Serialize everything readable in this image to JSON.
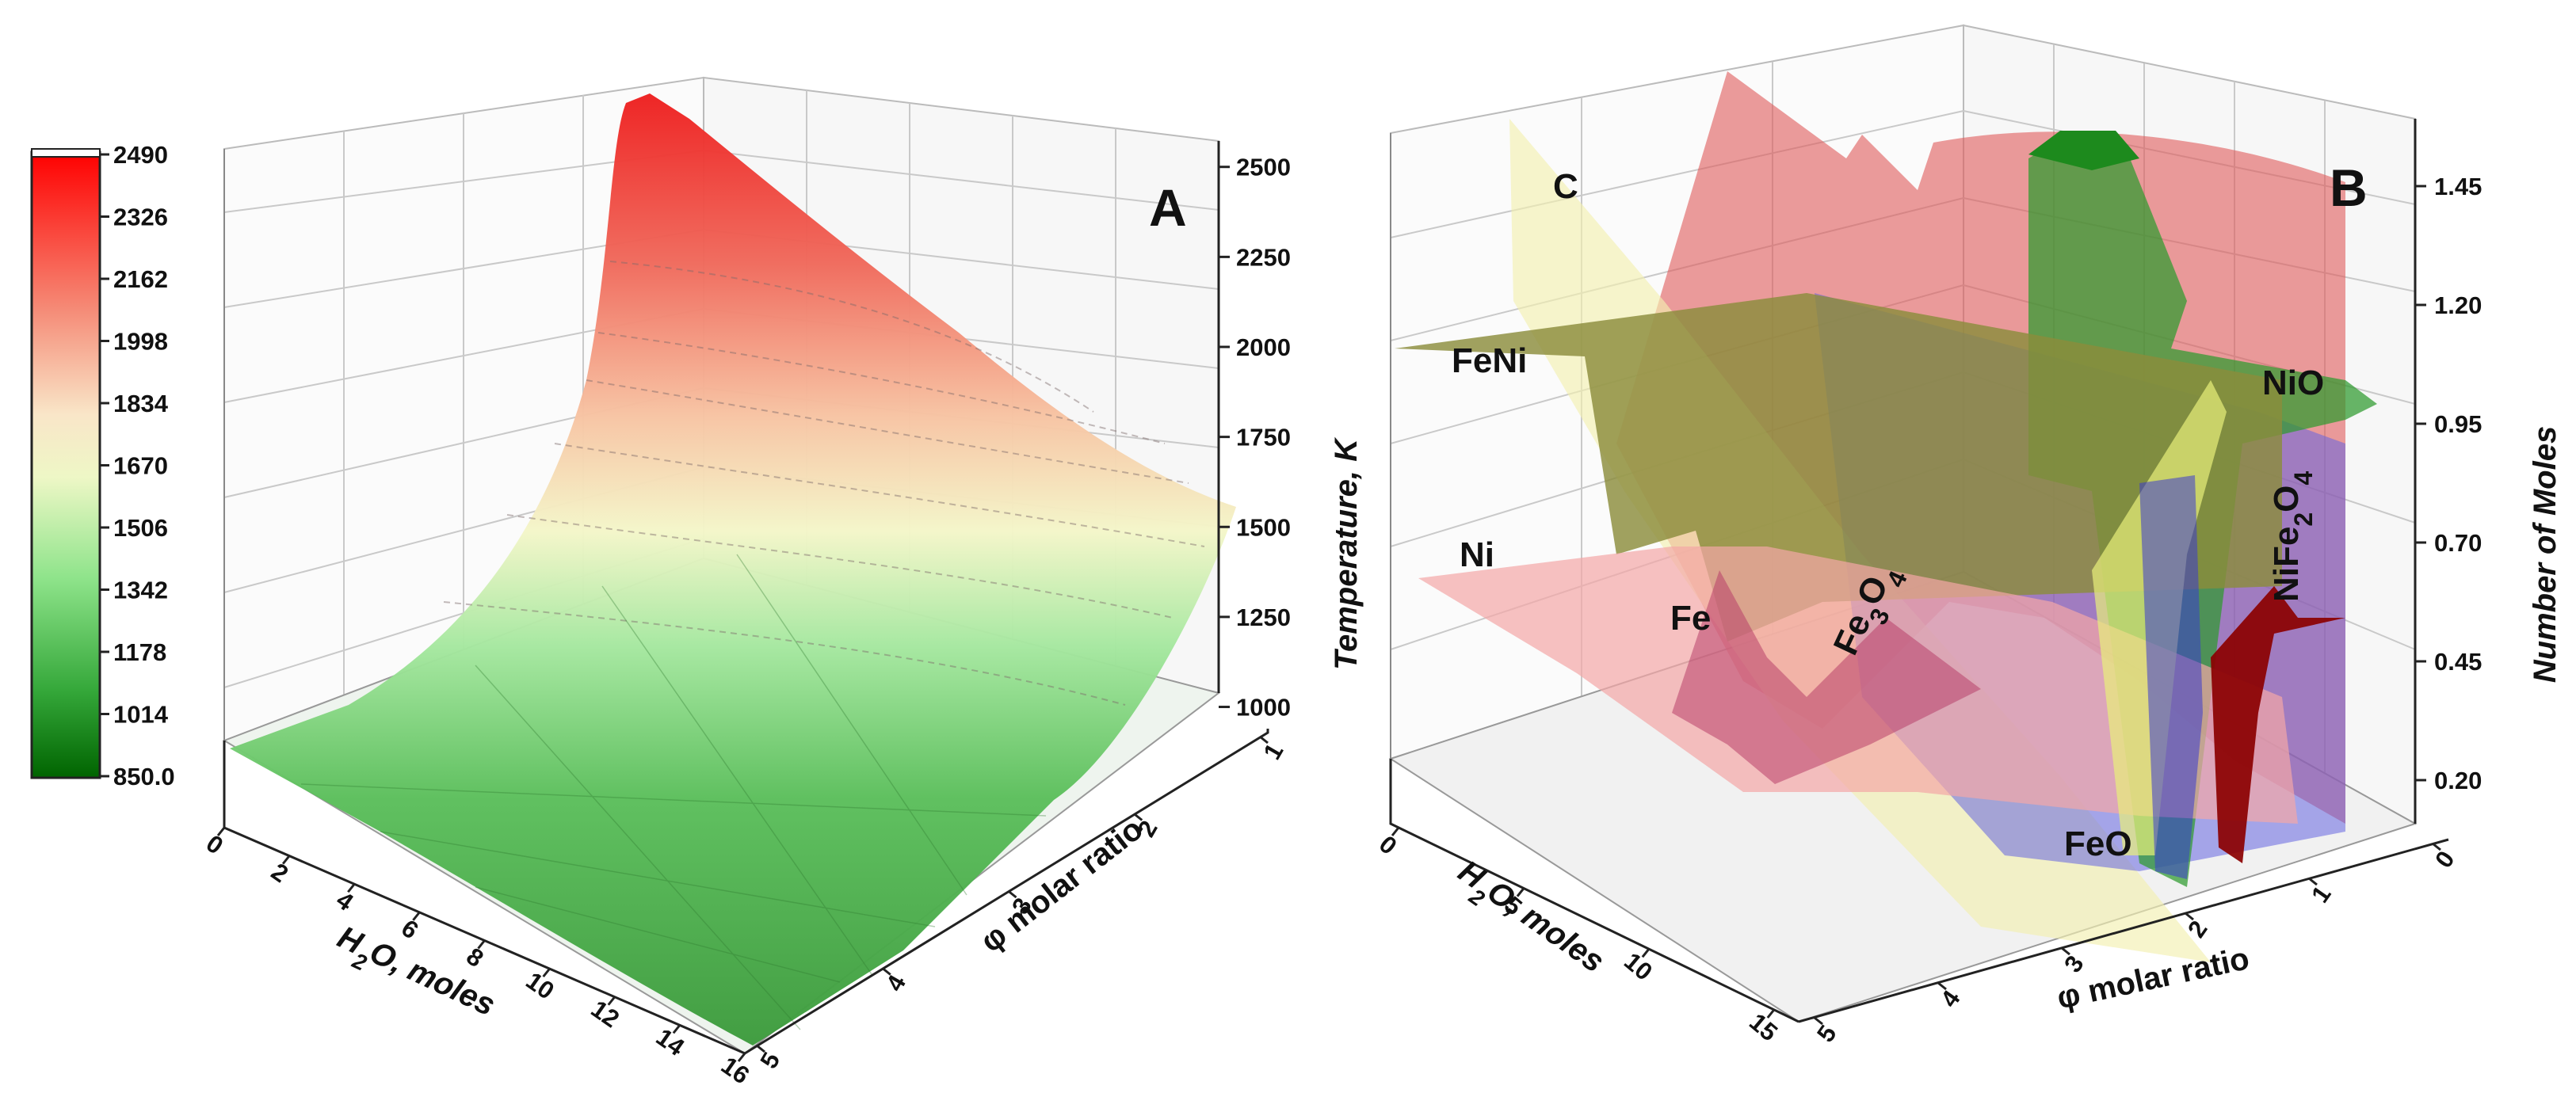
{
  "chart_data": [
    {
      "panel": "A",
      "type": "surface",
      "zlabel": "Temperature, K",
      "xlabel": "H2O, moles",
      "ylabel": "φ molar ratio",
      "x_ticks": [
        "0",
        "2",
        "4",
        "6",
        "8",
        "10",
        "12",
        "14",
        "16"
      ],
      "y_ticks": [
        "1",
        "2",
        "3",
        "4",
        "5"
      ],
      "z_ticks": [
        "1000",
        "1250",
        "1500",
        "1750",
        "2000",
        "2250",
        "2500"
      ],
      "zlim": [
        900,
        2550
      ],
      "colorbar": {
        "ticks": [
          "2490",
          "2326",
          "2162",
          "1998",
          "1834",
          "1670",
          "1506",
          "1342",
          "1178",
          "1014",
          "850.0"
        ],
        "colors": [
          "#ee1111",
          "#f07060",
          "#f6c8a8",
          "#f0f4c8",
          "#9ee89a",
          "#3fa93f",
          "#0a6e1e"
        ]
      },
      "surface_edges": {
        "h2o_0": {
          "phi": [
            1,
            2,
            3,
            4,
            5
          ],
          "T": [
            2490,
            2150,
            1500,
            1150,
            1000
          ]
        },
        "phi_1": {
          "h2o": [
            0,
            4,
            8,
            12,
            16
          ],
          "T": [
            2490,
            2250,
            2000,
            1820,
            1650
          ]
        },
        "h2o_16": {
          "phi": [
            1,
            2,
            3,
            4,
            5
          ],
          "T": [
            1650,
            1180,
            1000,
            950,
            930
          ]
        },
        "phi_5": {
          "h2o": [
            0,
            4,
            8,
            12,
            16
          ],
          "T": [
            1000,
            960,
            940,
            930,
            920
          ]
        }
      }
    },
    {
      "panel": "B",
      "type": "surface",
      "zlabel": "Number of Moles",
      "xlabel": "H2O, moles",
      "ylabel": "φ molar ratio",
      "x_ticks": [
        "0",
        "5",
        "10",
        "15"
      ],
      "y_ticks": [
        "0",
        "1",
        "2",
        "3",
        "4",
        "5"
      ],
      "z_ticks": [
        "0.20",
        "0.45",
        "0.70",
        "0.95",
        "1.20",
        "1.45"
      ],
      "series": [
        {
          "name": "C",
          "color": "#f3f0b8"
        },
        {
          "name": "FeNi",
          "color": "#8b8c3c"
        },
        {
          "name": "Ni",
          "color": "#f4a7a7"
        },
        {
          "name": "Fe",
          "color": "#c0506a"
        },
        {
          "name": "Fe3O4",
          "color": "#e06a6a"
        },
        {
          "name": "NiO",
          "color": "#2ca02c"
        },
        {
          "name": "NiFe2O4",
          "color": "#8b0000"
        },
        {
          "name": "FeO",
          "color": "#5b5bd6"
        }
      ]
    }
  ],
  "labels": {
    "panel_a": "A",
    "panel_b": "B",
    "a_zlabel": "Temperature, K",
    "h2o_pre": "H",
    "h2o_sub": "2",
    "h2o_post": "O, moles",
    "phi_label": "φ molar ratio",
    "b_zlabel": "Number of Moles",
    "sp_c": "C",
    "sp_feni": "FeNi",
    "sp_ni": "Ni",
    "sp_fe": "Fe",
    "sp_fe3o4_a": "Fe",
    "sp_fe3o4_b": "3",
    "sp_fe3o4_c": "O",
    "sp_fe3o4_d": "4",
    "sp_nio": "NiO",
    "sp_nife_a": "NiFe",
    "sp_nife_b": "2",
    "sp_nife_c": "O",
    "sp_nife_d": "4",
    "sp_feo": "FeO"
  }
}
